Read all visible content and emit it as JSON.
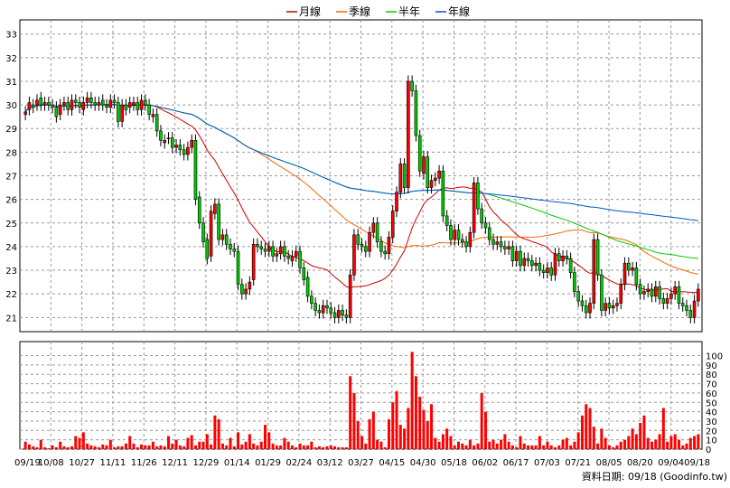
{
  "chart_data": {
    "type": "candlestick",
    "legend": [
      {
        "label": "月線",
        "color": "#cc0000"
      },
      {
        "label": "季線",
        "color": "#ff6600"
      },
      {
        "label": "半年",
        "color": "#00cc00"
      },
      {
        "label": "年線",
        "color": "#0055cc"
      }
    ],
    "x_ticks": [
      "09/19",
      "10/08",
      "10/27",
      "11/11",
      "11/26",
      "12/11",
      "12/29",
      "01/14",
      "01/29",
      "02/24",
      "03/12",
      "03/27",
      "04/15",
      "04/30",
      "05/18",
      "06/02",
      "06/17",
      "07/03",
      "07/21",
      "08/05",
      "08/20",
      "09/04",
      "09/18"
    ],
    "price_axis": {
      "min": 20.4,
      "max": 33.6,
      "ticks": [
        21,
        22,
        23,
        24,
        25,
        26,
        27,
        28,
        29,
        30,
        31,
        32,
        33
      ]
    },
    "volume_axis": {
      "min": 0,
      "max": 115,
      "ticks": [
        0,
        10,
        20,
        30,
        40,
        50,
        60,
        70,
        80,
        90,
        100
      ]
    },
    "price_close": [
      29.7,
      30.1,
      29.9,
      30.2,
      30.0,
      30.1,
      30.0,
      29.9,
      29.5,
      30.0,
      30.1,
      29.8,
      30.2,
      30.1,
      29.9,
      30.1,
      30.3,
      30.1,
      30.0,
      30.1,
      30.0,
      29.9,
      30.2,
      30.1,
      29.3,
      30.0,
      29.8,
      30.1,
      30.1,
      29.8,
      30.2,
      30.0,
      29.6,
      29.6,
      28.9,
      28.5,
      28.5,
      28.6,
      28.2,
      28.3,
      28.1,
      27.9,
      28.2,
      28.5,
      26.0,
      25.0,
      24.2,
      23.5,
      25.5,
      25.8,
      24.3,
      24.5,
      24.1,
      23.9,
      23.8,
      22.4,
      22.0,
      22.2,
      22.5,
      24.1,
      24.0,
      23.9,
      23.8,
      24.0,
      23.6,
      23.7,
      24.0,
      23.6,
      23.5,
      23.6,
      23.8,
      23.1,
      22.6,
      21.9,
      21.6,
      21.3,
      21.2,
      21.5,
      21.4,
      21.2,
      21.0,
      21.3,
      21.1,
      21.0,
      22.8,
      24.5,
      24.1,
      24.0,
      23.8,
      24.6,
      25.0,
      24.2,
      23.8,
      23.7,
      24.4,
      25.5,
      26.3,
      27.5,
      26.5,
      31.0,
      30.6,
      28.7,
      27.2,
      27.8,
      26.5,
      26.8,
      26.9,
      27.2,
      25.3,
      24.9,
      24.3,
      24.7,
      24.3,
      24.2,
      24.0,
      24.6,
      26.7,
      25.6,
      25.0,
      24.8,
      24.3,
      24.1,
      24.2,
      24.0,
      23.9,
      24.0,
      23.4,
      23.8,
      23.2,
      23.5,
      23.4,
      23.2,
      23.3,
      23.0,
      22.9,
      23.1,
      22.8,
      23.7,
      23.4,
      23.6,
      23.5,
      22.9,
      22.1,
      21.7,
      21.5,
      21.2,
      21.6,
      24.3,
      22.8,
      21.3,
      21.6,
      21.4,
      21.5,
      21.6,
      22.4,
      23.3,
      23.0,
      23.1,
      22.4,
      22.0,
      22.1,
      22.2,
      21.9,
      22.3,
      21.8,
      21.6,
      21.8,
      22.0,
      22.3,
      21.6,
      21.5,
      21.3,
      21.0,
      21.7,
      22.2
    ],
    "price_open": [
      29.6,
      29.8,
      30.0,
      30.0,
      30.3,
      30.0,
      30.1,
      30.0,
      29.9,
      29.6,
      30.0,
      30.1,
      29.8,
      30.2,
      30.1,
      29.8,
      30.1,
      30.3,
      30.1,
      30.0,
      30.2,
      30.0,
      29.9,
      30.2,
      30.1,
      29.3,
      30.0,
      29.9,
      30.0,
      30.1,
      29.8,
      30.2,
      30.0,
      29.5,
      29.6,
      28.9,
      28.4,
      28.6,
      28.6,
      28.2,
      28.3,
      28.1,
      27.9,
      28.2,
      28.5,
      26.1,
      25.0,
      24.3,
      23.6,
      25.4,
      25.8,
      24.3,
      24.5,
      24.1,
      23.9,
      23.8,
      22.4,
      22.0,
      22.2,
      22.6,
      24.1,
      24.0,
      23.9,
      23.8,
      24.0,
      23.6,
      23.7,
      24.0,
      23.6,
      23.4,
      23.6,
      23.8,
      23.1,
      22.7,
      21.9,
      21.6,
      21.3,
      21.2,
      21.5,
      21.4,
      21.2,
      21.0,
      21.3,
      21.1,
      21.0,
      22.8,
      24.5,
      24.1,
      24.0,
      23.8,
      24.6,
      25.0,
      24.2,
      23.8,
      23.7,
      24.4,
      25.5,
      26.3,
      27.5,
      26.5,
      31.0,
      30.6,
      28.7,
      27.1,
      27.8,
      26.5,
      26.8,
      26.9,
      27.2,
      25.3,
      24.9,
      24.3,
      24.7,
      24.3,
      24.2,
      24.0,
      24.6,
      26.7,
      25.6,
      25.0,
      24.8,
      24.3,
      24.1,
      24.2,
      24.0,
      23.9,
      24.0,
      23.4,
      23.8,
      23.2,
      23.5,
      23.4,
      23.2,
      23.3,
      23.0,
      22.9,
      23.1,
      22.8,
      23.7,
      23.4,
      23.6,
      23.5,
      22.9,
      22.1,
      21.7,
      21.5,
      21.2,
      21.6,
      24.3,
      22.8,
      21.3,
      21.6,
      21.4,
      21.5,
      21.6,
      22.4,
      23.3,
      23.0,
      23.1,
      22.4,
      22.0,
      22.1,
      22.2,
      21.9,
      22.3,
      21.8,
      21.6,
      21.8,
      22.0,
      22.3,
      21.6,
      21.5,
      21.3,
      21.0,
      21.7
    ],
    "volume": [
      8,
      5,
      3,
      2,
      10,
      2,
      1,
      4,
      2,
      8,
      3,
      2,
      3,
      14,
      12,
      18,
      6,
      4,
      3,
      2,
      5,
      4,
      10,
      2,
      3,
      3,
      6,
      14,
      6,
      2,
      5,
      4,
      4,
      8,
      3,
      4,
      3,
      14,
      6,
      10,
      4,
      3,
      12,
      15,
      4,
      8,
      8,
      16,
      5,
      36,
      32,
      6,
      4,
      12,
      3,
      18,
      5,
      8,
      16,
      6,
      4,
      8,
      26,
      18,
      6,
      4,
      4,
      12,
      8,
      4,
      2,
      6,
      4,
      4,
      8,
      2,
      3,
      2,
      3,
      4,
      3,
      2,
      2,
      2,
      78,
      60,
      30,
      14,
      6,
      32,
      40,
      10,
      8,
      2,
      32,
      50,
      62,
      26,
      22,
      44,
      104,
      78,
      56,
      42,
      30,
      48,
      12,
      8,
      16,
      22,
      14,
      4,
      8,
      6,
      4,
      10,
      4,
      6,
      60,
      40,
      8,
      10,
      6,
      10,
      16,
      8,
      4,
      2,
      14,
      6,
      4,
      4,
      4,
      14,
      4,
      8,
      4,
      2,
      4,
      10,
      12,
      4,
      8,
      18,
      36,
      48,
      44,
      24,
      6,
      22,
      12,
      4,
      2,
      4,
      8,
      10,
      14,
      22,
      16,
      28,
      36,
      12,
      8,
      10,
      16,
      44,
      8,
      14,
      16,
      10,
      4,
      6,
      12,
      14,
      16
    ]
  },
  "source_label": "資料日期: 09/18 (Goodinfo.tw)"
}
